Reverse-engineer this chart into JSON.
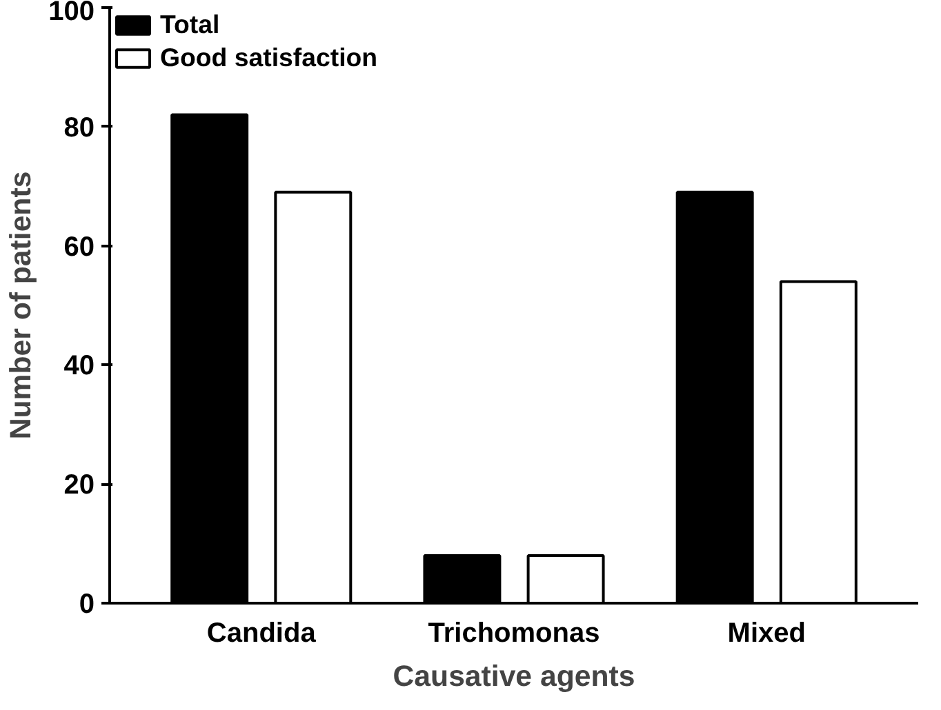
{
  "chart_data": {
    "type": "bar",
    "xlabel": "Causative agents",
    "ylabel": "Number of patients",
    "categories": [
      "Candida",
      "Trichomonas",
      "Mixed"
    ],
    "series": [
      {
        "name": "Total",
        "color": "#000000",
        "values": [
          82,
          8,
          69
        ]
      },
      {
        "name": "Good satisfaction",
        "color": "#ffffff",
        "values": [
          69,
          8,
          54
        ]
      }
    ],
    "ylim": [
      0,
      100
    ],
    "yticks": [
      0,
      20,
      40,
      60,
      80,
      100
    ],
    "grid": false,
    "legend": "top left"
  }
}
